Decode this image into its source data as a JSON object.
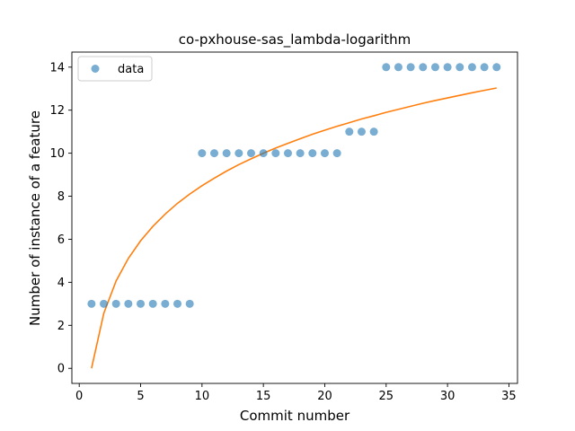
{
  "chart_data": {
    "type": "scatter",
    "title": "co-pxhouse-sas_lambda-logarithm",
    "xlabel": "Commit number",
    "ylabel": "Number of instance of a feature",
    "xlim": [
      -0.6,
      35.7
    ],
    "ylim": [
      -0.7,
      14.7
    ],
    "xticks": [
      0,
      5,
      10,
      15,
      20,
      25,
      30,
      35
    ],
    "yticks": [
      0,
      2,
      4,
      6,
      8,
      10,
      12,
      14
    ],
    "grid": false,
    "legend": {
      "placement": "top-left",
      "entries": [
        "data"
      ]
    },
    "colors": {
      "data": "#1f77b4",
      "fit": "#ff7f0e"
    },
    "series": [
      {
        "name": "data",
        "kind": "scatter",
        "x": [
          1,
          2,
          3,
          4,
          5,
          6,
          7,
          8,
          9,
          10,
          11,
          12,
          13,
          14,
          15,
          16,
          17,
          18,
          19,
          20,
          21,
          22,
          23,
          24,
          25,
          26,
          27,
          28,
          29,
          30,
          31,
          32,
          33,
          34
        ],
        "y": [
          3,
          3,
          3,
          3,
          3,
          3,
          3,
          3,
          3,
          10,
          10,
          10,
          10,
          10,
          10,
          10,
          10,
          10,
          10,
          10,
          10,
          11,
          11,
          11,
          14,
          14,
          14,
          14,
          14,
          14,
          14,
          14,
          14,
          14
        ]
      },
      {
        "kind": "line",
        "x": [
          1,
          2,
          3,
          4,
          5,
          6,
          7,
          8,
          9,
          10,
          11,
          12,
          13,
          14,
          15,
          16,
          17,
          18,
          19,
          20,
          21,
          22,
          23,
          24,
          25,
          26,
          27,
          28,
          29,
          30,
          31,
          32,
          33,
          34
        ],
        "y": [
          0,
          2.56,
          4.06,
          5.11,
          5.93,
          6.6,
          7.17,
          7.67,
          8.1,
          8.49,
          8.84,
          9.17,
          9.47,
          9.74,
          10.0,
          10.24,
          10.46,
          10.67,
          10.88,
          11.07,
          11.25,
          11.42,
          11.59,
          11.74,
          11.9,
          12.04,
          12.18,
          12.32,
          12.45,
          12.57,
          12.69,
          12.81,
          12.92,
          13.03
        ]
      }
    ]
  }
}
